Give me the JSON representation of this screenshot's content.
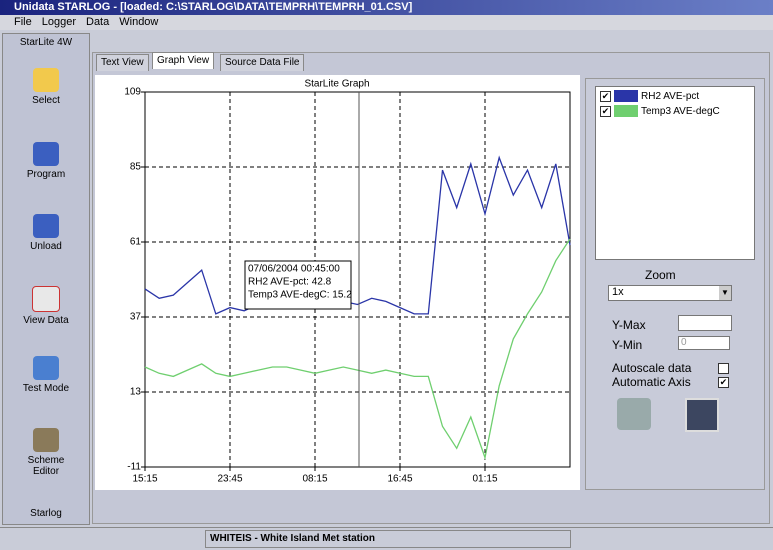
{
  "window": {
    "title": "Unidata STARLOG - [loaded: C:\\STARLOG\\DATA\\TEMPRH\\TEMPRH_01.CSV]",
    "menu": [
      "File",
      "Logger",
      "Data",
      "Window"
    ]
  },
  "sidebar": {
    "header": "StarLite 4W",
    "buttons": [
      "Select",
      "Program",
      "Unload",
      "View Data",
      "Test Mode",
      "Scheme Editor"
    ],
    "footer": "Starlog"
  },
  "tabs": [
    "Text View",
    "Graph View",
    "Source Data File"
  ],
  "chart_data": {
    "type": "line",
    "title": "StarLite Graph",
    "x": [
      "15:15",
      "16:40",
      "18:05",
      "19:30",
      "20:55",
      "22:20",
      "23:45",
      "01:10",
      "02:35",
      "04:00",
      "05:25",
      "06:50",
      "08:15",
      "09:40",
      "11:05",
      "12:30",
      "13:55",
      "15:20",
      "16:45",
      "18:10",
      "19:35",
      "21:00",
      "22:25",
      "23:50",
      "01:15",
      "02:40",
      "04:05",
      "05:30",
      "06:55",
      "08:20",
      "09:45"
    ],
    "xticks": [
      "15:15",
      "23:45",
      "08:15",
      "16:45",
      "01:15"
    ],
    "ylim": [
      -11,
      109
    ],
    "yticks": [
      109,
      85,
      61,
      37,
      13,
      -11
    ],
    "grid": true,
    "series": [
      {
        "name": "RH2   AVE-pct",
        "color": "#2a35a8",
        "values": [
          46,
          43,
          44,
          48,
          52,
          38,
          40,
          39,
          41,
          42,
          44,
          45,
          44,
          43,
          42,
          41,
          43,
          42,
          40,
          38,
          38,
          84,
          72,
          86,
          70,
          88,
          76,
          84,
          72,
          86,
          60
        ]
      },
      {
        "name": "Temp3  AVE-degC",
        "color": "#6fcf6f",
        "values": [
          21,
          19,
          18,
          20,
          22,
          19,
          18,
          19,
          20,
          21,
          21,
          20,
          19,
          20,
          21,
          20,
          19,
          20,
          19,
          18,
          18,
          2,
          -5,
          5,
          -8,
          15,
          30,
          38,
          45,
          55,
          62
        ]
      }
    ],
    "annotations": [
      "07/06/2004 00:45:00",
      "RH2   AVE-pct: 42.8",
      "Temp3  AVE-degC: 15.2"
    ]
  },
  "controls": {
    "zoom_label": "Zoom",
    "zoom_value": "1x",
    "ymax_label": "Y-Max",
    "ymin_label": "Y-Min",
    "ymin_value": "0",
    "autoscale_label": "Autoscale data",
    "autoscale_checked": false,
    "automatic_axis_label": "Automatic Axis",
    "automatic_axis_checked": true
  },
  "status": "WHITEIS - White Island Met station"
}
